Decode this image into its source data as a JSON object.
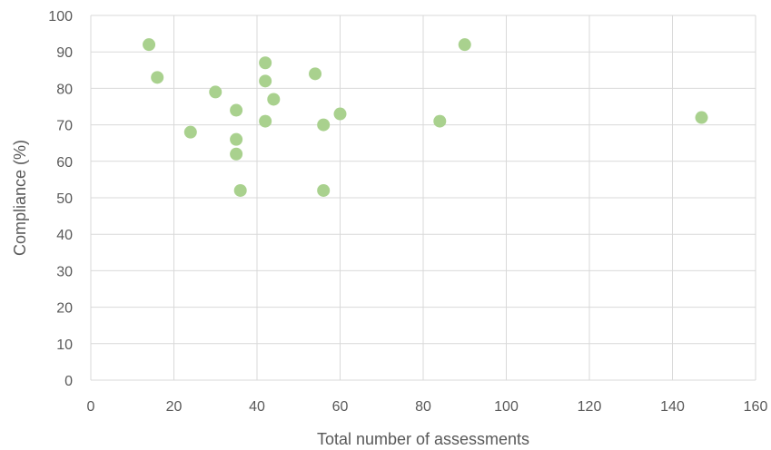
{
  "chart_data": {
    "type": "scatter",
    "title": "",
    "xlabel": "Total number of assessments",
    "ylabel": "Compliance (%)",
    "xlim": [
      0,
      160
    ],
    "ylim": [
      0,
      100
    ],
    "x_ticks": [
      "0",
      "20",
      "40",
      "60",
      "80",
      "100",
      "120",
      "140",
      "160"
    ],
    "y_ticks": [
      "0",
      "10",
      "20",
      "30",
      "40",
      "50",
      "60",
      "70",
      "80",
      "90",
      "100"
    ],
    "grid": true,
    "legend": "none",
    "marker_color": "#a9d18e",
    "points": [
      {
        "x": 14,
        "y": 92
      },
      {
        "x": 16,
        "y": 83
      },
      {
        "x": 24,
        "y": 68
      },
      {
        "x": 30,
        "y": 79
      },
      {
        "x": 35,
        "y": 74
      },
      {
        "x": 35,
        "y": 66
      },
      {
        "x": 35,
        "y": 62
      },
      {
        "x": 36,
        "y": 52
      },
      {
        "x": 42,
        "y": 87
      },
      {
        "x": 42,
        "y": 82
      },
      {
        "x": 42,
        "y": 71
      },
      {
        "x": 44,
        "y": 77
      },
      {
        "x": 54,
        "y": 84
      },
      {
        "x": 56,
        "y": 70
      },
      {
        "x": 56,
        "y": 52
      },
      {
        "x": 60,
        "y": 73
      },
      {
        "x": 84,
        "y": 71
      },
      {
        "x": 90,
        "y": 92
      },
      {
        "x": 147,
        "y": 72
      }
    ]
  }
}
